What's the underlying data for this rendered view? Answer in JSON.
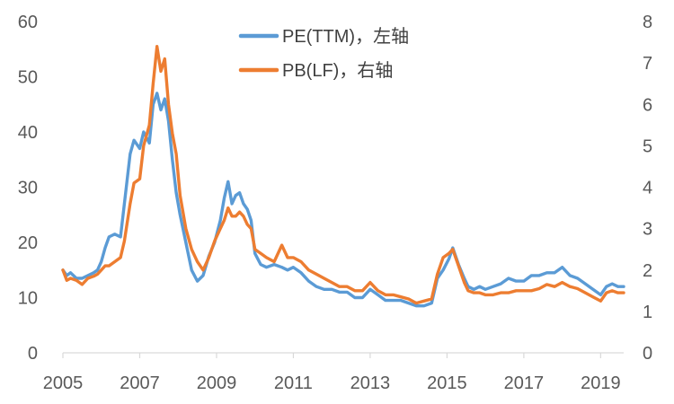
{
  "chart_data": {
    "type": "line",
    "title": "",
    "xlabel": "",
    "ylabel_left": "",
    "ylabel_right": "",
    "x_ticks": [
      "2005",
      "2007",
      "2009",
      "2011",
      "2013",
      "2015",
      "2017",
      "2019"
    ],
    "x_range": [
      2005.0,
      2019.6
    ],
    "y_left": {
      "range": [
        0,
        60
      ],
      "ticks": [
        "0",
        "10",
        "20",
        "30",
        "40",
        "50",
        "60"
      ]
    },
    "y_right": {
      "range": [
        0,
        8
      ],
      "ticks": [
        "0",
        "1",
        "2",
        "3",
        "4",
        "5",
        "6",
        "7",
        "8"
      ]
    },
    "grid": false,
    "legend_position": "top-center",
    "series": [
      {
        "name": "PE(TTM)，左轴",
        "axis": "left",
        "color": "#5b9bd5",
        "x": [
          2005.0,
          2005.1,
          2005.2,
          2005.35,
          2005.5,
          2005.65,
          2005.8,
          2005.9,
          2006.0,
          2006.1,
          2006.2,
          2006.35,
          2006.5,
          2006.6,
          2006.75,
          2006.85,
          2007.0,
          2007.1,
          2007.25,
          2007.35,
          2007.45,
          2007.55,
          2007.65,
          2007.75,
          2007.85,
          2007.95,
          2008.05,
          2008.2,
          2008.35,
          2008.5,
          2008.65,
          2008.8,
          2008.95,
          2009.1,
          2009.2,
          2009.3,
          2009.4,
          2009.5,
          2009.6,
          2009.7,
          2009.8,
          2009.9,
          2010.0,
          2010.15,
          2010.3,
          2010.5,
          2010.7,
          2010.85,
          2011.0,
          2011.2,
          2011.4,
          2011.6,
          2011.8,
          2012.0,
          2012.2,
          2012.4,
          2012.6,
          2012.8,
          2013.0,
          2013.2,
          2013.4,
          2013.6,
          2013.8,
          2014.0,
          2014.2,
          2014.4,
          2014.6,
          2014.75,
          2014.9,
          2015.05,
          2015.15,
          2015.3,
          2015.45,
          2015.55,
          2015.7,
          2015.85,
          2016.0,
          2016.2,
          2016.4,
          2016.6,
          2016.8,
          2017.0,
          2017.2,
          2017.4,
          2017.6,
          2017.8,
          2018.0,
          2018.2,
          2018.4,
          2018.6,
          2018.8,
          2019.0,
          2019.15,
          2019.3,
          2019.45,
          2019.6
        ],
        "values": [
          15.0,
          14.0,
          14.5,
          13.5,
          13.5,
          14.0,
          14.5,
          15.0,
          16.5,
          19.0,
          21.0,
          21.5,
          21.0,
          27.0,
          36.0,
          38.5,
          37.0,
          40.0,
          38.0,
          45.0,
          47.0,
          44.0,
          46.0,
          42.0,
          35.0,
          29.0,
          25.0,
          20.0,
          15.0,
          13.0,
          14.0,
          17.5,
          20.0,
          24.0,
          28.0,
          31.0,
          27.0,
          28.5,
          29.0,
          27.0,
          26.0,
          24.0,
          18.0,
          16.0,
          15.5,
          16.0,
          15.5,
          15.0,
          15.5,
          14.5,
          13.0,
          12.0,
          11.5,
          11.5,
          11.0,
          11.0,
          10.0,
          10.0,
          11.5,
          10.5,
          9.5,
          9.5,
          9.5,
          9.0,
          8.5,
          8.5,
          9.0,
          13.5,
          15.0,
          17.0,
          19.0,
          16.0,
          13.5,
          12.0,
          11.5,
          12.0,
          11.5,
          12.0,
          12.5,
          13.5,
          13.0,
          13.0,
          14.0,
          14.0,
          14.5,
          14.5,
          15.5,
          14.0,
          13.5,
          12.5,
          11.5,
          10.5,
          12.0,
          12.5,
          12.0,
          12.0
        ]
      },
      {
        "name": "PB(LF)，右轴",
        "axis": "right",
        "color": "#ed7d31",
        "x": [
          2005.0,
          2005.1,
          2005.2,
          2005.35,
          2005.5,
          2005.65,
          2005.8,
          2005.9,
          2006.0,
          2006.1,
          2006.2,
          2006.35,
          2006.5,
          2006.6,
          2006.75,
          2006.85,
          2007.0,
          2007.1,
          2007.25,
          2007.35,
          2007.45,
          2007.55,
          2007.65,
          2007.75,
          2007.85,
          2007.95,
          2008.05,
          2008.2,
          2008.35,
          2008.5,
          2008.65,
          2008.8,
          2008.95,
          2009.1,
          2009.2,
          2009.3,
          2009.4,
          2009.5,
          2009.6,
          2009.7,
          2009.8,
          2009.9,
          2010.0,
          2010.15,
          2010.3,
          2010.5,
          2010.7,
          2010.85,
          2011.0,
          2011.2,
          2011.4,
          2011.6,
          2011.8,
          2012.0,
          2012.2,
          2012.4,
          2012.6,
          2012.8,
          2013.0,
          2013.2,
          2013.4,
          2013.6,
          2013.8,
          2014.0,
          2014.2,
          2014.4,
          2014.6,
          2014.75,
          2014.9,
          2015.05,
          2015.15,
          2015.3,
          2015.45,
          2015.55,
          2015.7,
          2015.85,
          2016.0,
          2016.2,
          2016.4,
          2016.6,
          2016.8,
          2017.0,
          2017.2,
          2017.4,
          2017.6,
          2017.8,
          2018.0,
          2018.2,
          2018.4,
          2018.6,
          2018.8,
          2019.0,
          2019.15,
          2019.3,
          2019.45,
          2019.6
        ],
        "values": [
          2.0,
          1.75,
          1.8,
          1.75,
          1.65,
          1.8,
          1.85,
          1.9,
          2.0,
          2.1,
          2.1,
          2.2,
          2.3,
          2.7,
          3.6,
          4.1,
          4.2,
          5.0,
          5.5,
          6.5,
          7.4,
          6.8,
          7.1,
          6.0,
          5.3,
          4.8,
          3.8,
          3.0,
          2.5,
          2.2,
          2.0,
          2.3,
          2.7,
          3.0,
          3.2,
          3.5,
          3.3,
          3.3,
          3.4,
          3.3,
          3.1,
          3.0,
          2.5,
          2.4,
          2.3,
          2.2,
          2.6,
          2.3,
          2.3,
          2.2,
          2.0,
          1.9,
          1.8,
          1.7,
          1.6,
          1.6,
          1.5,
          1.5,
          1.7,
          1.5,
          1.4,
          1.4,
          1.35,
          1.3,
          1.2,
          1.25,
          1.3,
          1.9,
          2.3,
          2.4,
          2.5,
          2.1,
          1.7,
          1.5,
          1.45,
          1.45,
          1.4,
          1.4,
          1.45,
          1.45,
          1.5,
          1.5,
          1.5,
          1.55,
          1.65,
          1.6,
          1.7,
          1.6,
          1.55,
          1.45,
          1.35,
          1.25,
          1.45,
          1.5,
          1.45,
          1.45
        ]
      }
    ]
  }
}
